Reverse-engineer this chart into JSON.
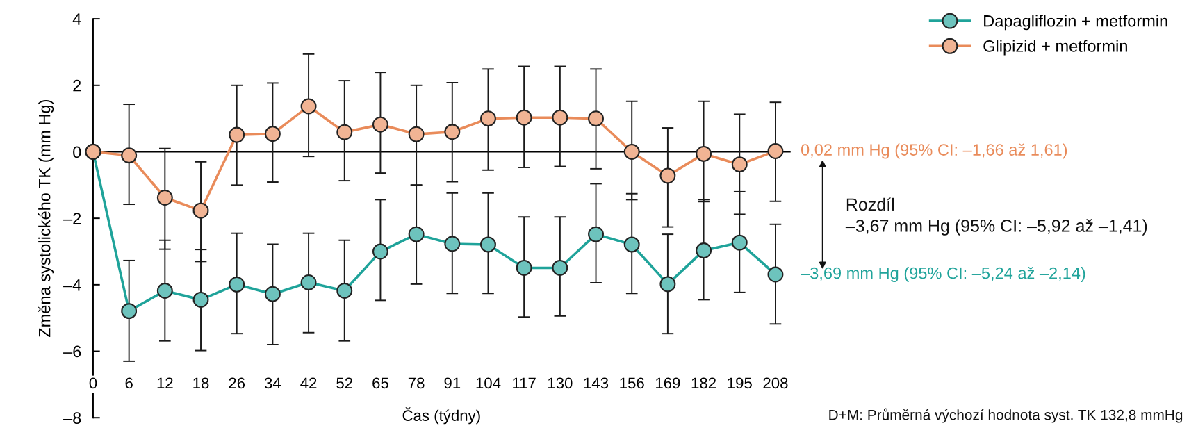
{
  "chart_data": {
    "type": "line",
    "xlabel": "Čas (týdny)",
    "ylabel": "Změna systolického TK (mm Hg)",
    "categories": [
      "0",
      "6",
      "12",
      "18",
      "26",
      "34",
      "42",
      "52",
      "65",
      "78",
      "91",
      "104",
      "117",
      "130",
      "143",
      "156",
      "169",
      "182",
      "195",
      "208"
    ],
    "ylim": [
      -8,
      4
    ],
    "yticks": [
      {
        "value": -8,
        "label": "–8"
      },
      {
        "value": -6,
        "label": "–6"
      },
      {
        "value": -4,
        "label": "–4"
      },
      {
        "value": -2,
        "label": "–2"
      },
      0,
      2,
      4
    ],
    "series": [
      {
        "name": "Dapagliflozin + metformin",
        "color": "#1fa39a",
        "values": [
          0,
          -4.79,
          -4.18,
          -4.45,
          -3.99,
          -4.28,
          -3.93,
          -4.18,
          -3.0,
          -2.48,
          -2.77,
          -2.79,
          -3.49,
          -3.49,
          -2.48,
          -2.79,
          -3.98,
          -2.97,
          -2.73,
          -3.69
        ],
        "errors": [
          null,
          [
            -6.3,
            -3.27
          ],
          [
            -5.69,
            -2.66
          ],
          [
            -5.98,
            -2.94
          ],
          [
            -5.47,
            -2.45
          ],
          [
            -5.8,
            -2.78
          ],
          [
            -5.44,
            -2.45
          ],
          [
            -5.69,
            -2.66
          ],
          [
            -4.47,
            -1.44
          ],
          [
            -3.98,
            -1.0
          ],
          [
            -4.26,
            -1.24
          ],
          [
            -4.26,
            -1.24
          ],
          [
            -4.97,
            -1.96
          ],
          [
            -4.94,
            -1.96
          ],
          [
            -3.94,
            -0.96
          ],
          [
            -4.26,
            -1.26
          ],
          [
            -5.47,
            -2.48
          ],
          [
            -4.45,
            -1.44
          ],
          [
            -4.23,
            -1.2
          ],
          [
            -5.18,
            -2.18
          ]
        ]
      },
      {
        "name": "Glipizid + metformin",
        "color": "#e98b5a",
        "values": [
          0,
          -0.11,
          -1.38,
          -1.77,
          0.51,
          0.54,
          1.37,
          0.59,
          0.82,
          0.53,
          0.6,
          1.0,
          1.03,
          1.03,
          1.0,
          0.0,
          -0.72,
          -0.06,
          -0.38,
          0.02
        ],
        "errors": [
          null,
          [
            -1.58,
            1.43
          ],
          [
            -2.93,
            0.1
          ],
          [
            -3.3,
            -0.3
          ],
          [
            -1.0,
            2.0
          ],
          [
            -0.91,
            2.07
          ],
          [
            -0.14,
            2.94
          ],
          [
            -0.87,
            2.14
          ],
          [
            -0.64,
            2.39
          ],
          [
            -1.0,
            2.0
          ],
          [
            -0.9,
            2.08
          ],
          [
            -0.55,
            2.49
          ],
          [
            -0.47,
            2.57
          ],
          [
            -0.44,
            2.57
          ],
          [
            -0.51,
            2.49
          ],
          [
            -1.44,
            1.52
          ],
          [
            -2.26,
            0.72
          ],
          [
            -1.5,
            1.52
          ],
          [
            -1.88,
            1.13
          ],
          [
            -1.49,
            1.49
          ]
        ]
      }
    ],
    "ref_lines": [
      {
        "axis": "y",
        "value": 0,
        "color": "#000000"
      }
    ],
    "marker": "circle",
    "line_style": "solid",
    "legend": "top right",
    "grid": false,
    "annotations": [
      {
        "text": "0,02 mm Hg (95% CI: –1,66 až 1,61)",
        "x": "208",
        "y": 0.02
      },
      "Rozdíl\n–3,67 mm Hg (95% CI: –5,92 až –1,41)",
      {
        "text": "–3,69 mm Hg (95% CI: –5,24 až –2,14)",
        "x": "208",
        "y": -3.69
      },
      "D+M: Průměrná výchozí hodnota syst. TK 132,8 mmHg"
    ]
  }
}
